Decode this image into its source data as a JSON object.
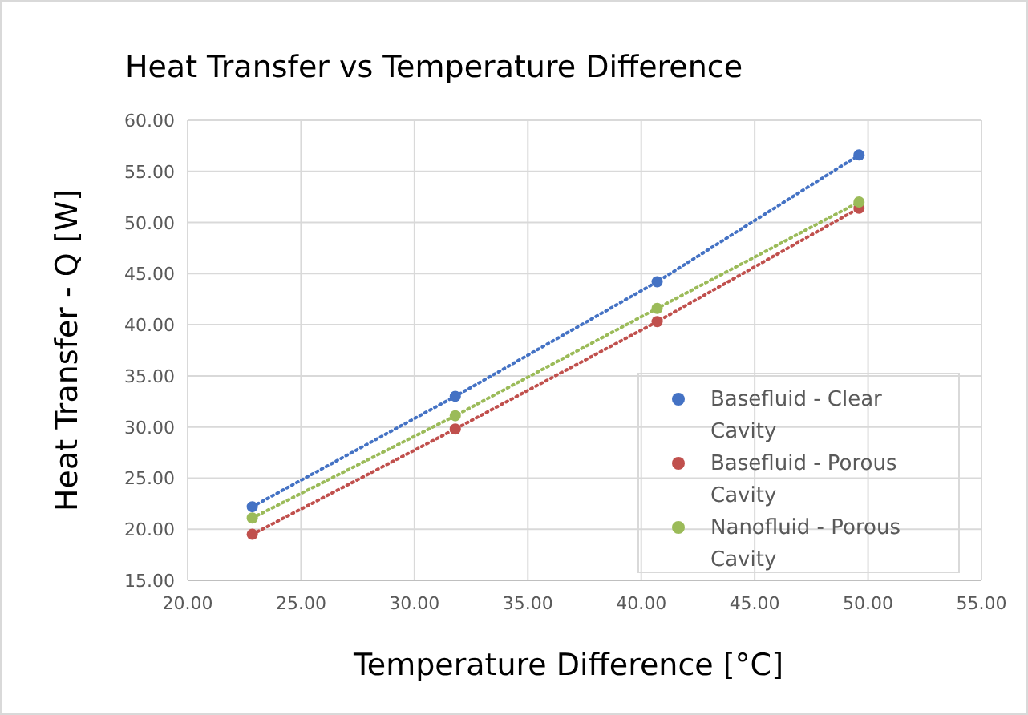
{
  "chart_data": {
    "type": "line",
    "title": "Heat Transfer vs Temperature Difference",
    "xlabel": "Temperature Difference [°C]",
    "ylabel": "Heat Transfer - Q [W]",
    "x": [
      22.85,
      31.8,
      40.7,
      49.6
    ],
    "series": [
      {
        "name": "Basefluid - Clear Cavity",
        "color": "#4472c4",
        "values": [
          22.2,
          33.0,
          44.2,
          56.6
        ]
      },
      {
        "name": "Basefluid - Porous Cavity",
        "color": "#c0504d",
        "values": [
          19.5,
          29.8,
          40.3,
          51.4
        ]
      },
      {
        "name": "Nanofluid - Porous Cavity",
        "color": "#9bbb59",
        "values": [
          21.1,
          31.1,
          41.6,
          52.0
        ]
      }
    ],
    "xlim": [
      20,
      55
    ],
    "xticks": [
      {
        "value": 20,
        "label": "20.00"
      },
      {
        "value": 25,
        "label": "25.00"
      },
      {
        "value": 30,
        "label": "30.00"
      },
      {
        "value": 35,
        "label": "35.00"
      },
      {
        "value": 40,
        "label": "40.00"
      },
      {
        "value": 45,
        "label": "45.00"
      },
      {
        "value": 50,
        "label": "50.00"
      },
      {
        "value": 55,
        "label": "55.00"
      }
    ],
    "ylim": [
      15,
      60
    ],
    "yticks": [
      {
        "value": 15,
        "label": "15.00"
      },
      {
        "value": 20,
        "label": "20.00"
      },
      {
        "value": 25,
        "label": "25.00"
      },
      {
        "value": 30,
        "label": "30.00"
      },
      {
        "value": 35,
        "label": "35.00"
      },
      {
        "value": 40,
        "label": "40.00"
      },
      {
        "value": 45,
        "label": "45.00"
      },
      {
        "value": 50,
        "label": "50.00"
      },
      {
        "value": 55,
        "label": "55.00"
      },
      {
        "value": 60,
        "label": "60.00"
      }
    ],
    "grid": true,
    "legend": "bottom right",
    "marker": "circle",
    "line_style": "dotted"
  }
}
